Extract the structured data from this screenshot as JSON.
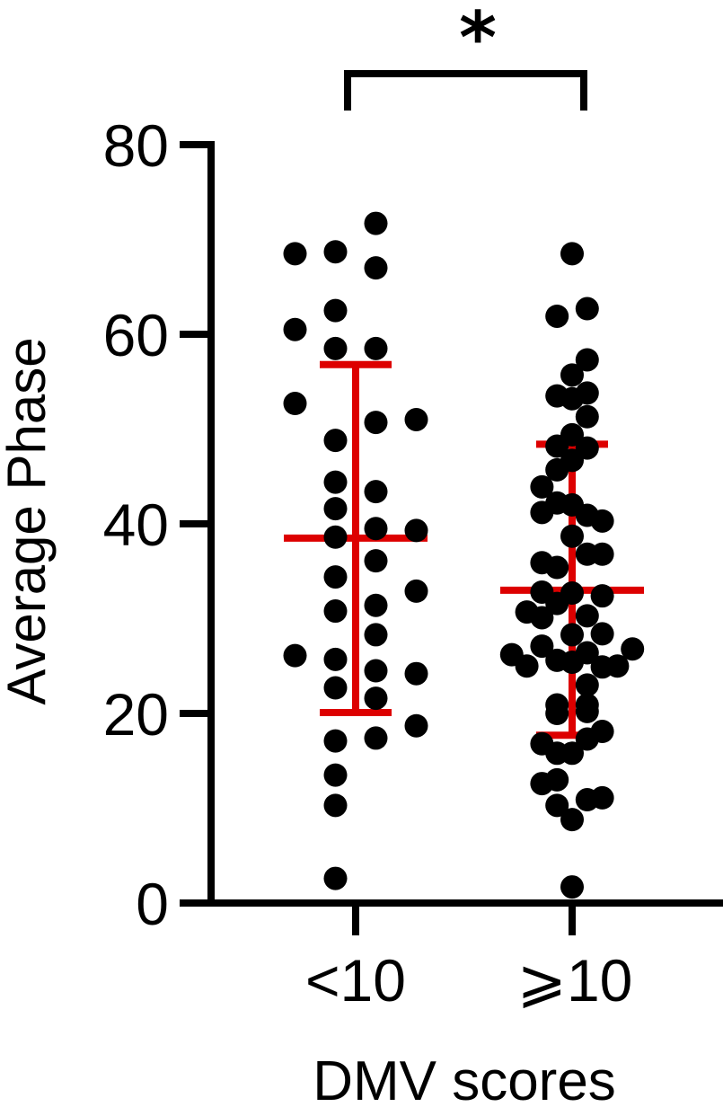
{
  "chart_data": {
    "type": "scatter",
    "subtype": "dot-plot with mean and SD bars",
    "title": "",
    "xlabel": "DMV scores",
    "ylabel": "Average Phase",
    "ylim": [
      0,
      80
    ],
    "yticks": [
      0,
      20,
      40,
      60,
      80
    ],
    "grid": false,
    "legend": null,
    "categories": [
      "<10",
      "⩾10"
    ],
    "colors": {
      "points": "#000000",
      "summary_bars": "#DD0000",
      "axes": "#000000"
    },
    "significance": {
      "label": "*",
      "between": [
        "<10",
        "⩾10"
      ]
    },
    "series": [
      {
        "name": "<10",
        "mean": 38.5,
        "sd_upper": 56.8,
        "sd_lower": 20.1,
        "points": [
          {
            "dx": 1,
            "y": 71.7
          },
          {
            "dx": -3,
            "y": 68.5
          },
          {
            "dx": -1,
            "y": 68.7
          },
          {
            "dx": 1,
            "y": 67.0
          },
          {
            "dx": -1,
            "y": 62.5
          },
          {
            "dx": -3,
            "y": 60.5
          },
          {
            "dx": -1,
            "y": 58.5
          },
          {
            "dx": 1,
            "y": 58.5
          },
          {
            "dx": -3,
            "y": 52.7
          },
          {
            "dx": 1,
            "y": 50.7
          },
          {
            "dx": 3,
            "y": 51.0
          },
          {
            "dx": -1,
            "y": 48.8
          },
          {
            "dx": -1,
            "y": 44.4
          },
          {
            "dx": 1,
            "y": 43.4
          },
          {
            "dx": -1,
            "y": 41.6
          },
          {
            "dx": 1,
            "y": 39.5
          },
          {
            "dx": 3,
            "y": 39.3
          },
          {
            "dx": -1,
            "y": 38.6
          },
          {
            "dx": 1,
            "y": 36.1
          },
          {
            "dx": -1,
            "y": 34.4
          },
          {
            "dx": 3,
            "y": 32.9
          },
          {
            "dx": 1,
            "y": 31.4
          },
          {
            "dx": -1,
            "y": 30.8
          },
          {
            "dx": 1,
            "y": 28.3
          },
          {
            "dx": -3,
            "y": 26.1
          },
          {
            "dx": -1,
            "y": 25.7
          },
          {
            "dx": 1,
            "y": 24.5
          },
          {
            "dx": 3,
            "y": 24.2
          },
          {
            "dx": -1,
            "y": 22.7
          },
          {
            "dx": 1,
            "y": 21.6
          },
          {
            "dx": 3,
            "y": 18.7
          },
          {
            "dx": 1,
            "y": 17.4
          },
          {
            "dx": -1,
            "y": 17.1
          },
          {
            "dx": -1,
            "y": 13.5
          },
          {
            "dx": -1,
            "y": 10.3
          },
          {
            "dx": -1,
            "y": 2.6
          }
        ]
      },
      {
        "name": "⩾10",
        "mean": 33.0,
        "sd_upper": 48.4,
        "sd_lower": 17.7,
        "points": [
          {
            "dx": 0,
            "y": 68.5
          },
          {
            "dx": 1,
            "y": 62.7
          },
          {
            "dx": -1,
            "y": 61.9
          },
          {
            "dx": 1,
            "y": 57.3
          },
          {
            "dx": 0,
            "y": 55.7
          },
          {
            "dx": 1,
            "y": 53.8
          },
          {
            "dx": -1,
            "y": 53.5
          },
          {
            "dx": 0,
            "y": 53.2
          },
          {
            "dx": 1,
            "y": 51.3
          },
          {
            "dx": 0,
            "y": 49.4
          },
          {
            "dx": -1,
            "y": 48.2
          },
          {
            "dx": 1,
            "y": 48.0
          },
          {
            "dx": 0,
            "y": 46.7
          },
          {
            "dx": -1,
            "y": 45.7
          },
          {
            "dx": -2,
            "y": 43.9
          },
          {
            "dx": -1,
            "y": 42.2
          },
          {
            "dx": 0,
            "y": 42.0
          },
          {
            "dx": -2,
            "y": 41.2
          },
          {
            "dx": 1,
            "y": 40.9
          },
          {
            "dx": 2,
            "y": 40.3
          },
          {
            "dx": 0,
            "y": 38.7
          },
          {
            "dx": 1,
            "y": 36.8
          },
          {
            "dx": 2,
            "y": 36.8
          },
          {
            "dx": -2,
            "y": 35.9
          },
          {
            "dx": -1,
            "y": 35.4
          },
          {
            "dx": -2,
            "y": 32.8
          },
          {
            "dx": 0,
            "y": 32.7
          },
          {
            "dx": 2,
            "y": 32.4
          },
          {
            "dx": -1,
            "y": 31.6
          },
          {
            "dx": -3,
            "y": 30.7
          },
          {
            "dx": 1,
            "y": 30.3
          },
          {
            "dx": -2,
            "y": 30.1
          },
          {
            "dx": 0,
            "y": 28.3
          },
          {
            "dx": 2,
            "y": 28.4
          },
          {
            "dx": -2,
            "y": 27.1
          },
          {
            "dx": 4,
            "y": 26.8
          },
          {
            "dx": 1,
            "y": 26.4
          },
          {
            "dx": -4,
            "y": 26.2
          },
          {
            "dx": -1,
            "y": 25.6
          },
          {
            "dx": 0,
            "y": 25.4
          },
          {
            "dx": -3,
            "y": 25.0
          },
          {
            "dx": 3,
            "y": 25.0
          },
          {
            "dx": 2,
            "y": 24.9
          },
          {
            "dx": 1,
            "y": 23.0
          },
          {
            "dx": -1,
            "y": 20.9
          },
          {
            "dx": 1,
            "y": 20.9
          },
          {
            "dx": -1,
            "y": 20.0
          },
          {
            "dx": 1,
            "y": 20.2
          },
          {
            "dx": 2,
            "y": 18.1
          },
          {
            "dx": 1,
            "y": 17.3
          },
          {
            "dx": -2,
            "y": 16.8
          },
          {
            "dx": -1,
            "y": 15.8
          },
          {
            "dx": 0,
            "y": 15.8
          },
          {
            "dx": -1,
            "y": 13.0
          },
          {
            "dx": -2,
            "y": 12.6
          },
          {
            "dx": 2,
            "y": 11.1
          },
          {
            "dx": 1,
            "y": 10.9
          },
          {
            "dx": -1,
            "y": 10.3
          },
          {
            "dx": 0,
            "y": 8.8
          },
          {
            "dx": 0,
            "y": 1.7
          }
        ]
      }
    ]
  },
  "labels": {
    "ylabel": "Average Phase",
    "xlabel": "DMV scores",
    "yticks": [
      "0",
      "20",
      "40",
      "60",
      "80"
    ],
    "categories": [
      "<10",
      "⩾10"
    ],
    "significance": "*"
  }
}
